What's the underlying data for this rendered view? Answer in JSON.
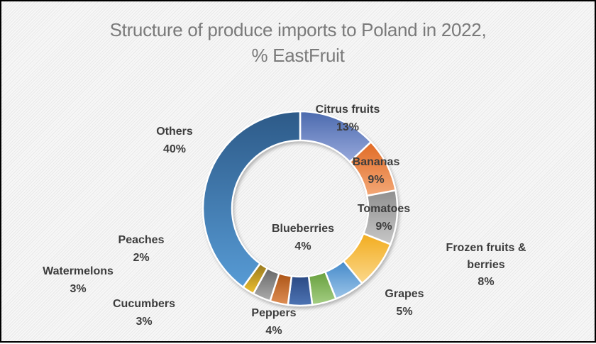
{
  "title": {
    "line1": "Structure of produce imports to Poland in 2022,",
    "line2": "% EastFruit",
    "full": "Structure of produce imports to Poland in 2022, % EastFruit"
  },
  "colors": {
    "title_text": "#7A7A7A",
    "data_label_text": "#3D3D3D",
    "background": "#F2F2F2",
    "slice_border": "#FFFFFF",
    "canvas_border": "#000000"
  },
  "chart_data": {
    "type": "pie",
    "subtype": "donut",
    "title": "Structure of produce imports to Poland in 2022, % EastFruit",
    "unit": "%",
    "legend": "none",
    "start_angle_deg": 0,
    "direction": "clockwise",
    "hole_ratio": 0.7,
    "categories": [
      "Citrus fruits",
      "Bananas",
      "Tomatoes",
      "Frozen fruits & berries",
      "Grapes",
      "Blueberries",
      "Peppers",
      "Cucumbers",
      "Watermelons",
      "Peaches",
      "Others"
    ],
    "values": [
      13,
      9,
      9,
      8,
      5,
      4,
      4,
      3,
      3,
      2,
      40
    ],
    "slices": [
      {
        "name": "Citrus fruits",
        "value": 13,
        "pct": "13%",
        "label_lines": [
          "Citrus fruits",
          "13%"
        ],
        "color_top": "#4B6AAE",
        "color_bottom": "#98A9DC"
      },
      {
        "name": "Bananas",
        "value": 9,
        "pct": "9%",
        "label_lines": [
          "Bananas",
          "9%"
        ],
        "color_top": "#E16B25",
        "color_bottom": "#F3A877"
      },
      {
        "name": "Tomatoes",
        "value": 9,
        "pct": "9%",
        "label_lines": [
          "Tomatoes",
          "9%"
        ],
        "color_top": "#8F8F8F",
        "color_bottom": "#C7C7C7"
      },
      {
        "name": "Frozen fruits & berries",
        "value": 8,
        "pct": "8%",
        "label_lines": [
          "Frozen fruits &",
          "berries",
          "8%"
        ],
        "color_top": "#F2AC1E",
        "color_bottom": "#FBD88C"
      },
      {
        "name": "Grapes",
        "value": 5,
        "pct": "5%",
        "label_lines": [
          "Grapes",
          "5%"
        ],
        "color_top": "#4489C9",
        "color_bottom": "#9CC5E9"
      },
      {
        "name": "Blueberries",
        "value": 4,
        "pct": "4%",
        "label_lines": [
          "Blueberries",
          "4%"
        ],
        "color_top": "#67A03D",
        "color_bottom": "#A5CE84"
      },
      {
        "name": "Peppers",
        "value": 4,
        "pct": "4%",
        "label_lines": [
          "Peppers",
          "4%"
        ],
        "color_top": "#2B4A84",
        "color_bottom": "#4E74B4"
      },
      {
        "name": "Cucumbers",
        "value": 3,
        "pct": "3%",
        "label_lines": [
          "Cucumbers",
          "3%"
        ],
        "color_top": "#AC5415",
        "color_bottom": "#DE8E55"
      },
      {
        "name": "Watermelons",
        "value": 3,
        "pct": "3%",
        "label_lines": [
          "Watermelons",
          "3%"
        ],
        "color_top": "#676767",
        "color_bottom": "#ACACAC"
      },
      {
        "name": "Peaches",
        "value": 2,
        "pct": "2%",
        "label_lines": [
          "Peaches",
          "2%"
        ],
        "color_top": "#97781F",
        "color_bottom": "#EEC02F"
      },
      {
        "name": "Others",
        "value": 40,
        "pct": "40%",
        "label_lines": [
          "Others",
          "40%"
        ],
        "color_top": "#2D5A88",
        "color_bottom": "#579BD5"
      }
    ]
  }
}
